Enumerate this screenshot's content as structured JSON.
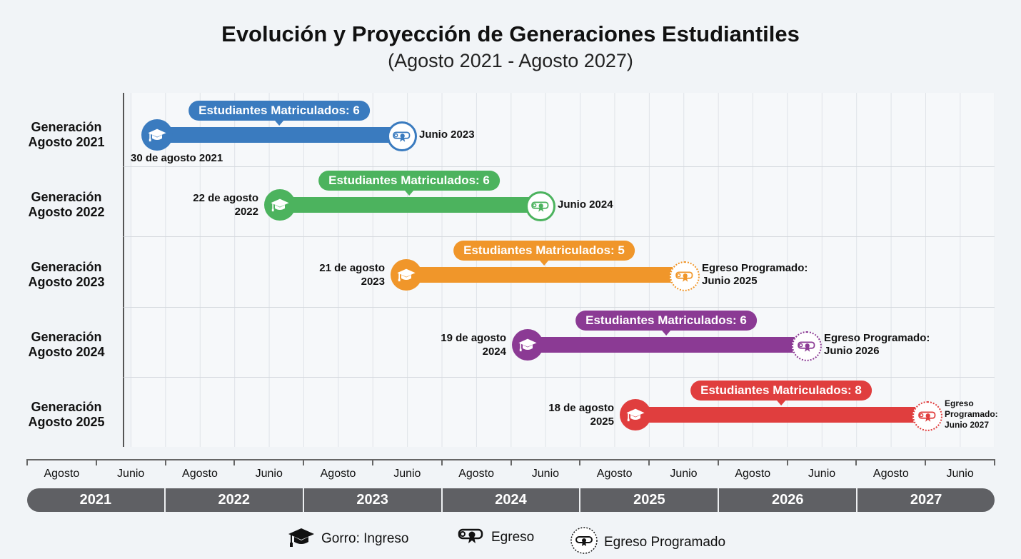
{
  "title": "Evolución y Proyección de Generaciones Estudiantiles",
  "subtitle": "(Agosto 2021 - Agosto 2027)",
  "chart_data": {
    "type": "bar",
    "orientation": "horizontal-range",
    "title": "Evolución y Proyección de Generaciones Estudiantiles",
    "subtitle": "(Agosto 2021 - Agosto 2027)",
    "categories": [
      "Generación Agosto 2021",
      "Generación Agosto 2022",
      "Generación Agosto 2023",
      "Generación Agosto 2024",
      "Generación Agosto 2025"
    ],
    "rows": [
      {
        "label": "Generación Agosto 2021",
        "start": "2021-08-30",
        "end": "2023-06",
        "start_label": "30 de agosto 2021",
        "end_label": "Junio 2023",
        "enrolled": 6,
        "bubble": "Estudiantes Matriculados: 6",
        "scheduled": false,
        "color": "#3a7bbf"
      },
      {
        "label": "Generación Agosto 2022",
        "start": "2022-08-22",
        "end": "2024-06",
        "start_label": "22 de agosto 2022",
        "end_label": "Junio 2024",
        "enrolled": 6,
        "bubble": "Estudiantes Matriculados: 6",
        "scheduled": false,
        "color": "#4cb35e"
      },
      {
        "label": "Generación Agosto 2023",
        "start": "2023-08-21",
        "end": "2025-06",
        "start_label": "21 de agosto 2023",
        "end_label": "Egreso Programado: Junio 2025",
        "enrolled": 5,
        "bubble": "Estudiantes Matriculados: 5",
        "scheduled": true,
        "color": "#f0962a"
      },
      {
        "label": "Generación Agosto 2024",
        "start": "2024-08-19",
        "end": "2026-06",
        "start_label": "19 de agosto 2024",
        "end_label": "Egreso Programado: Junio 2026",
        "enrolled": 6,
        "bubble": "Estudiantes Matriculados: 6",
        "scheduled": true,
        "color": "#8b3a94"
      },
      {
        "label": "Generación Agosto 2025",
        "start": "2025-08-18",
        "end": "2027-06",
        "start_label": "18 de agosto 2025",
        "end_label": "Egreso Programado: Junio 2027",
        "enrolled": 8,
        "bubble": "Estudiantes Matriculados: 8",
        "scheduled": true,
        "color": "#e03e3e"
      }
    ],
    "x_month_ticks": [
      "Agosto",
      "Junio",
      "Agosto",
      "Junio",
      "Agosto",
      "Junio",
      "Agosto",
      "Junio",
      "Agosto",
      "Junio",
      "Agosto",
      "Junio",
      "Agosto",
      "Junio"
    ],
    "x_year_ticks": [
      "2021",
      "2022",
      "2023",
      "2024",
      "2025",
      "2026",
      "2027"
    ],
    "xlim": [
      "2021-08",
      "2027-08"
    ],
    "grid": true,
    "legend_position": "bottom"
  },
  "legend": [
    {
      "icon": "graduation-cap-icon",
      "label": "Gorro: Ingreso"
    },
    {
      "icon": "diploma-icon",
      "label": "Egreso"
    },
    {
      "icon": "diploma-dashed-icon",
      "label": "Egreso Programado"
    }
  ]
}
